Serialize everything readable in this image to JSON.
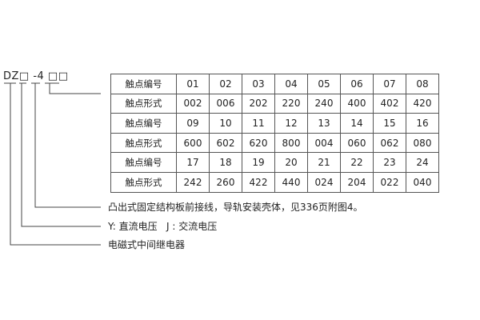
{
  "model_code": "DZ□ -4 □□",
  "table": {
    "rows": [
      {
        "label": "触点编号",
        "values": [
          "01",
          "02",
          "03",
          "04",
          "05",
          "06",
          "07",
          "08"
        ]
      },
      {
        "label": "触点形式",
        "values": [
          "002",
          "006",
          "202",
          "220",
          "240",
          "400",
          "402",
          "420"
        ]
      },
      {
        "label": "触点编号",
        "values": [
          "09",
          "10",
          "11",
          "12",
          "13",
          "14",
          "15",
          "16"
        ]
      },
      {
        "label": "触点形式",
        "values": [
          "600",
          "602",
          "620",
          "800",
          "004",
          "060",
          "062",
          "080"
        ]
      },
      {
        "label": "触点编号",
        "values": [
          "17",
          "18",
          "19",
          "20",
          "21",
          "22",
          "23",
          "24"
        ]
      },
      {
        "label": "触点形式",
        "values": [
          "242",
          "260",
          "422",
          "440",
          "024",
          "204",
          "022",
          "040"
        ]
      }
    ]
  },
  "notes": {
    "structure": "凸出式固定结构板前接线，导轨安装壳体，见336页附图4。",
    "voltage": "Y: 直流电压   J : 交流电压",
    "type": "电磁式中间继电器"
  }
}
